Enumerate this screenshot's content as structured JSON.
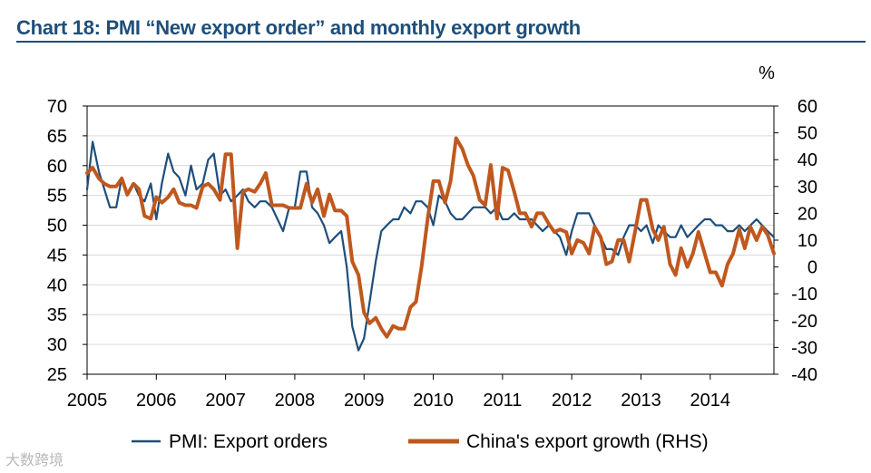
{
  "title": "Chart 18: PMI “New export order” and monthly export growth",
  "watermark": "大数跨境",
  "colors": {
    "pmi": "#1f4e79",
    "exports": "#c0581e",
    "title": "#1f4e79",
    "axis": "#000000"
  },
  "chart_data": {
    "type": "line",
    "title": "Chart 18: PMI “New export order” and monthly export growth",
    "x_tick_labels": [
      "2005",
      "2006",
      "2007",
      "2008",
      "2009",
      "2010",
      "2011",
      "2012",
      "2013",
      "2014"
    ],
    "x_range": [
      2005.0,
      2014.92
    ],
    "left_axis": {
      "ylim": [
        25,
        70
      ],
      "ticks": [
        25,
        30,
        35,
        40,
        45,
        50,
        55,
        60,
        65,
        70
      ],
      "label": ""
    },
    "right_axis": {
      "ylim": [
        -40,
        60
      ],
      "ticks": [
        -40,
        -30,
        -20,
        -10,
        0,
        10,
        20,
        30,
        40,
        50,
        60
      ],
      "unit_label": "%"
    },
    "legend": {
      "position": "bottom",
      "entries": [
        "PMI: Export orders",
        "China's export growth (RHS)"
      ]
    },
    "series": [
      {
        "name": "PMI: Export orders",
        "axis": "left",
        "x": [
          2005.0,
          2005.08,
          2005.17,
          2005.25,
          2005.33,
          2005.42,
          2005.5,
          2005.58,
          2005.67,
          2005.75,
          2005.83,
          2005.92,
          2006.0,
          2006.08,
          2006.17,
          2006.25,
          2006.33,
          2006.42,
          2006.5,
          2006.58,
          2006.67,
          2006.75,
          2006.83,
          2006.92,
          2007.0,
          2007.08,
          2007.17,
          2007.25,
          2007.33,
          2007.42,
          2007.5,
          2007.58,
          2007.67,
          2007.75,
          2007.83,
          2007.92,
          2008.0,
          2008.08,
          2008.17,
          2008.25,
          2008.33,
          2008.42,
          2008.5,
          2008.58,
          2008.67,
          2008.75,
          2008.83,
          2008.92,
          2009.0,
          2009.08,
          2009.17,
          2009.25,
          2009.33,
          2009.42,
          2009.5,
          2009.58,
          2009.67,
          2009.75,
          2009.83,
          2009.92,
          2010.0,
          2010.08,
          2010.17,
          2010.25,
          2010.33,
          2010.42,
          2010.5,
          2010.58,
          2010.67,
          2010.75,
          2010.83,
          2010.92,
          2011.0,
          2011.08,
          2011.17,
          2011.25,
          2011.33,
          2011.42,
          2011.5,
          2011.58,
          2011.67,
          2011.75,
          2011.83,
          2011.92,
          2012.0,
          2012.08,
          2012.17,
          2012.25,
          2012.33,
          2012.42,
          2012.5,
          2012.58,
          2012.67,
          2012.75,
          2012.83,
          2012.92,
          2013.0,
          2013.08,
          2013.17,
          2013.25,
          2013.33,
          2013.42,
          2013.5,
          2013.58,
          2013.67,
          2013.75,
          2013.83,
          2013.92,
          2014.0,
          2014.08,
          2014.17,
          2014.25,
          2014.33,
          2014.42,
          2014.5,
          2014.58,
          2014.67,
          2014.75,
          2014.83,
          2014.92
        ],
        "values": [
          56,
          64,
          59,
          56,
          53,
          53,
          58,
          55,
          57,
          55,
          54,
          57,
          51,
          57,
          62,
          59,
          58,
          55,
          60,
          56,
          57,
          61,
          62,
          55,
          56,
          54,
          55,
          56,
          54,
          53,
          54,
          54,
          53,
          51,
          49,
          53,
          53,
          59,
          59,
          53,
          52,
          50,
          47,
          48,
          49,
          43,
          33,
          29,
          31,
          37,
          44,
          49,
          50,
          51,
          51,
          53,
          52,
          54,
          54,
          53,
          50,
          55,
          54,
          52,
          51,
          51,
          52,
          53,
          53,
          53,
          52,
          53,
          51,
          51,
          52,
          51,
          51,
          51,
          50,
          49,
          50,
          49,
          48,
          45,
          49,
          52,
          52,
          52,
          50,
          48,
          46,
          46,
          45,
          48,
          50,
          50,
          49,
          50,
          47,
          50,
          49,
          48,
          48,
          50,
          48,
          49,
          50,
          51,
          51,
          50,
          50,
          49,
          49,
          50,
          49,
          50,
          51,
          50,
          49,
          48
        ]
      },
      {
        "name": "China's export growth (RHS)",
        "axis": "right",
        "x": [
          2005.0,
          2005.08,
          2005.17,
          2005.25,
          2005.33,
          2005.42,
          2005.5,
          2005.58,
          2005.67,
          2005.75,
          2005.83,
          2005.92,
          2006.0,
          2006.08,
          2006.17,
          2006.25,
          2006.33,
          2006.42,
          2006.5,
          2006.58,
          2006.67,
          2006.75,
          2006.83,
          2006.92,
          2007.0,
          2007.08,
          2007.17,
          2007.25,
          2007.33,
          2007.42,
          2007.5,
          2007.58,
          2007.67,
          2007.75,
          2007.83,
          2007.92,
          2008.0,
          2008.08,
          2008.17,
          2008.25,
          2008.33,
          2008.42,
          2008.5,
          2008.58,
          2008.67,
          2008.75,
          2008.83,
          2008.92,
          2009.0,
          2009.08,
          2009.17,
          2009.25,
          2009.33,
          2009.42,
          2009.5,
          2009.58,
          2009.67,
          2009.75,
          2009.83,
          2009.92,
          2010.0,
          2010.08,
          2010.17,
          2010.25,
          2010.33,
          2010.42,
          2010.5,
          2010.58,
          2010.67,
          2010.75,
          2010.83,
          2010.92,
          2011.0,
          2011.08,
          2011.17,
          2011.25,
          2011.33,
          2011.42,
          2011.5,
          2011.58,
          2011.67,
          2011.75,
          2011.83,
          2011.92,
          2012.0,
          2012.08,
          2012.17,
          2012.25,
          2012.33,
          2012.42,
          2012.5,
          2012.58,
          2012.67,
          2012.75,
          2012.83,
          2012.92,
          2013.0,
          2013.08,
          2013.17,
          2013.25,
          2013.33,
          2013.42,
          2013.5,
          2013.58,
          2013.67,
          2013.75,
          2013.83,
          2013.92,
          2014.0,
          2014.08,
          2014.17,
          2014.25,
          2014.33,
          2014.42,
          2014.5,
          2014.58,
          2014.67,
          2014.75,
          2014.83,
          2014.92
        ],
        "values": [
          35,
          37,
          33,
          31,
          30,
          30,
          33,
          27,
          31,
          29,
          19,
          18,
          26,
          24,
          26,
          29,
          24,
          23,
          23,
          22,
          30,
          31,
          29,
          25,
          42,
          42,
          7,
          28,
          29,
          28,
          31,
          35,
          23,
          23,
          23,
          22,
          22,
          22,
          31,
          24,
          29,
          19,
          27,
          21,
          21,
          19,
          2,
          -3,
          -17,
          -21,
          -19,
          -23,
          -26,
          -22,
          -23,
          -23,
          -15,
          -13,
          0,
          18,
          32,
          32,
          24,
          32,
          48,
          44,
          38,
          34,
          25,
          23,
          38,
          18,
          37,
          36,
          28,
          20,
          20,
          15,
          20,
          20,
          16,
          13,
          14,
          13,
          5,
          10,
          9,
          5,
          15,
          11,
          1,
          2,
          10,
          10,
          2,
          14,
          25,
          25,
          14,
          10,
          15,
          1,
          -3,
          7,
          0,
          5,
          13,
          5,
          -2,
          -2,
          -7,
          1,
          5,
          14,
          7,
          15,
          10,
          15,
          12,
          5
        ]
      }
    ]
  }
}
